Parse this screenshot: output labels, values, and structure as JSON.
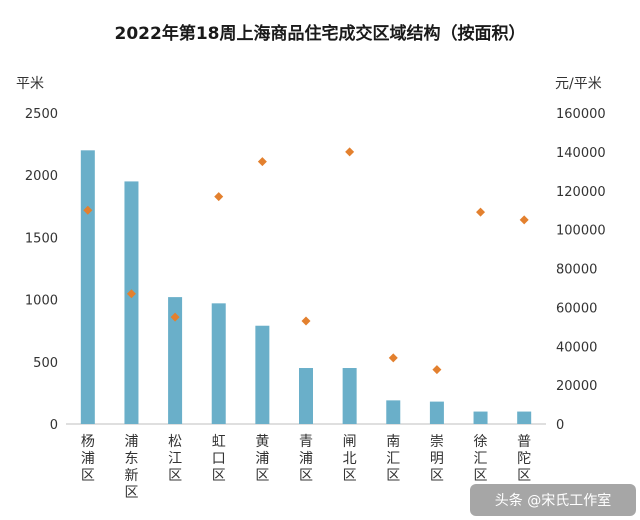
{
  "chart_data": {
    "type": "bar",
    "title": "2022年第18周上海商品住宅成交区域结构（按面积）",
    "categories": [
      "杨浦区",
      "浦东新区",
      "松江区",
      "虹口区",
      "黄浦区",
      "青浦区",
      "闸北区",
      "南汇区",
      "崇明区",
      "徐汇区",
      "普陀区"
    ],
    "series": [
      {
        "type": "bar",
        "axis": "left",
        "color": "#6aafc9",
        "values": [
          2200,
          1950,
          1020,
          970,
          790,
          450,
          450,
          190,
          180,
          100,
          100
        ]
      },
      {
        "type": "scatter",
        "axis": "right",
        "color": "#e3802e",
        "values": [
          110000,
          67000,
          55000,
          117000,
          135000,
          53000,
          140000,
          34000,
          28000,
          109000,
          105000
        ]
      }
    ],
    "y_left": {
      "label": "平米",
      "ylim": [
        0,
        2500
      ],
      "ticks": [
        0,
        500,
        1000,
        1500,
        2000,
        2500
      ]
    },
    "y_right": {
      "label": "元/平米",
      "ylim": [
        0,
        160000
      ],
      "ticks": [
        0,
        20000,
        40000,
        60000,
        80000,
        100000,
        120000,
        140000,
        160000
      ]
    },
    "grid": false,
    "legend": "none"
  },
  "watermark": "头条 @宋氏工作室"
}
